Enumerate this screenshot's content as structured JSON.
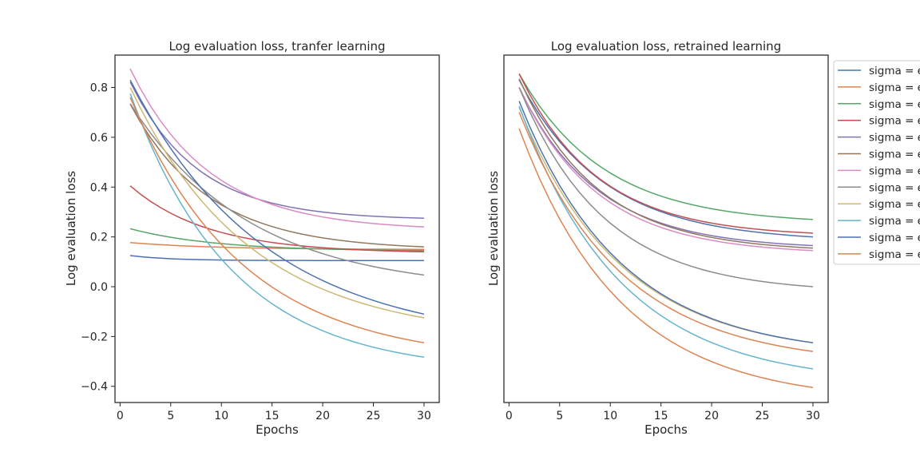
{
  "chart_data": [
    {
      "type": "line",
      "title": "Log evaluation loss, tranfer learning",
      "xlabel": "Epochs",
      "ylabel": "Log evaluation loss",
      "xlim": [
        -0.5,
        31.5
      ],
      "ylim": [
        -0.465,
        0.93
      ],
      "xticks": [
        0,
        5,
        10,
        15,
        20,
        25,
        30
      ],
      "yticks": [
        -0.4,
        -0.2,
        0.0,
        0.2,
        0.4,
        0.6,
        0.8
      ],
      "ytick_labels": [
        "−0.4",
        "−0.2",
        "0.0",
        "0.2",
        "0.4",
        "0.6",
        "0.8"
      ],
      "grid": false,
      "series": [
        {
          "color": "#4c72b0",
          "start": 0.125,
          "end": 0.105,
          "k": 0.25
        },
        {
          "color": "#dd8452",
          "start": 0.177,
          "end": 0.15,
          "k": 0.12
        },
        {
          "color": "#55a868",
          "start": 0.233,
          "end": 0.145,
          "k": 0.12
        },
        {
          "color": "#c44e52",
          "start": 0.405,
          "end": 0.14,
          "k": 0.13
        },
        {
          "color": "#8172b3",
          "start": 0.822,
          "end": 0.275,
          "k": 0.15
        },
        {
          "color": "#937860",
          "start": 0.733,
          "end": 0.16,
          "k": 0.13
        },
        {
          "color": "#da8bc3",
          "start": 0.875,
          "end": 0.24,
          "k": 0.13
        },
        {
          "color": "#8c8c8c",
          "start": 0.735,
          "end": 0.047,
          "k": 0.085
        },
        {
          "color": "#ccb974",
          "start": 0.8,
          "end": -0.125,
          "k": 0.085
        },
        {
          "color": "#64b5cd",
          "start": 0.775,
          "end": -0.283,
          "k": 0.1
        },
        {
          "color": "#4c72b0",
          "start": 0.83,
          "end": -0.11,
          "k": 0.075
        },
        {
          "color": "#dd8452",
          "start": 0.76,
          "end": -0.225,
          "k": 0.09
        }
      ]
    },
    {
      "type": "line",
      "title": "Log evaluation loss, retrained learning",
      "xlabel": "Epochs",
      "ylabel": "Log evaluation loss",
      "xlim": [
        -0.5,
        31.5
      ],
      "ylim": [
        -0.465,
        0.93
      ],
      "xticks": [
        0,
        5,
        10,
        15,
        20,
        25,
        30
      ],
      "grid": false,
      "legend": {
        "placement": "outside-right",
        "entries": [
          "sigma = é",
          "sigma = é",
          "sigma = é",
          "sigma = é",
          "sigma = é",
          "sigma = é",
          "sigma = é",
          "sigma = é",
          "sigma = é",
          "sigma = é",
          "sigma = é",
          "sigma = é"
        ]
      },
      "series": [
        {
          "color": "#4c72b0",
          "start": 0.83,
          "end": 0.2,
          "k": 0.12
        },
        {
          "color": "#dd8452",
          "start": 0.635,
          "end": -0.405,
          "k": 0.1
        },
        {
          "color": "#55a868",
          "start": 0.855,
          "end": 0.27,
          "k": 0.12
        },
        {
          "color": "#c44e52",
          "start": 0.855,
          "end": 0.215,
          "k": 0.13
        },
        {
          "color": "#8172b3",
          "start": 0.8,
          "end": 0.165,
          "k": 0.13
        },
        {
          "color": "#937860",
          "start": 0.835,
          "end": 0.155,
          "k": 0.13
        },
        {
          "color": "#da8bc3",
          "start": 0.8,
          "end": 0.145,
          "k": 0.13
        },
        {
          "color": "#8c8c8c",
          "start": 0.8,
          "end": 0.0,
          "k": 0.12
        },
        {
          "color": "#ccb974",
          "start": 0.72,
          "end": -0.225,
          "k": 0.1
        },
        {
          "color": "#64b5cd",
          "start": 0.725,
          "end": -0.33,
          "k": 0.1
        },
        {
          "color": "#4c72b0",
          "start": 0.745,
          "end": -0.225,
          "k": 0.1
        },
        {
          "color": "#dd8452",
          "start": 0.7,
          "end": -0.26,
          "k": 0.1
        }
      ]
    }
  ]
}
